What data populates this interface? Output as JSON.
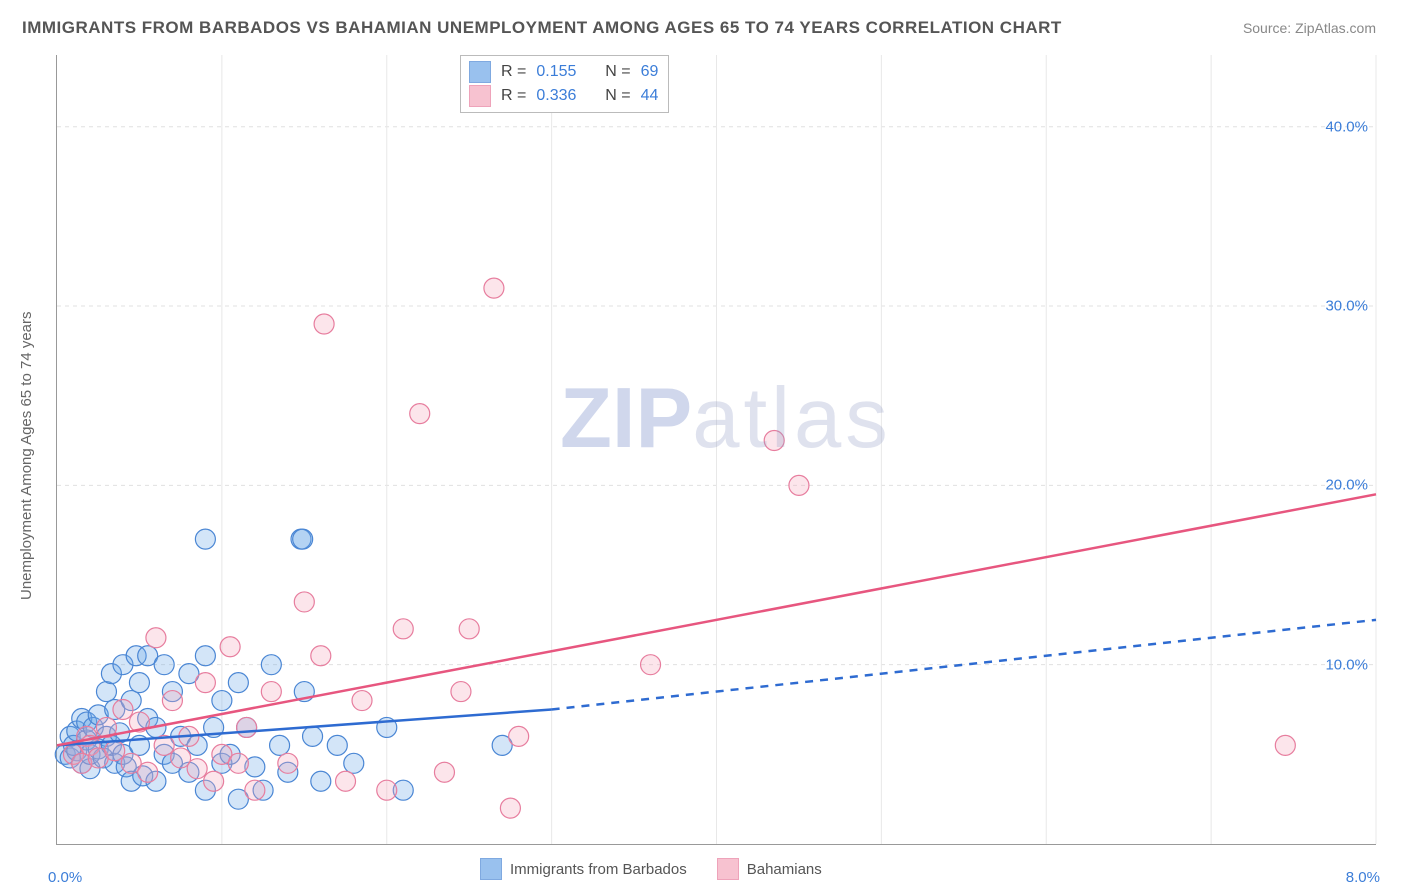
{
  "title": "IMMIGRANTS FROM BARBADOS VS BAHAMIAN UNEMPLOYMENT AMONG AGES 65 TO 74 YEARS CORRELATION CHART",
  "source": "Source: ZipAtlas.com",
  "watermark_a": "ZIP",
  "watermark_b": "atlas",
  "y_axis_label": "Unemployment Among Ages 65 to 74 years",
  "chart": {
    "type": "scatter",
    "xlim": [
      0,
      8
    ],
    "ylim": [
      0,
      44
    ],
    "background_color": "#ffffff",
    "grid_color_h": "#e0e0e0",
    "grid_color_v": "#e8e8e8",
    "y_ticks": [
      10,
      20,
      30,
      40
    ],
    "y_tick_labels": [
      "10.0%",
      "20.0%",
      "30.0%",
      "40.0%"
    ],
    "x_ticks": [
      1,
      2,
      3,
      4,
      5,
      6,
      7,
      8
    ],
    "x_origin_label": "0.0%",
    "x_end_label": "8.0%",
    "marker_radius": 10,
    "marker_stroke_width": 1.2,
    "marker_fill_opacity": 0.3,
    "series": [
      {
        "name": "Immigrants from Barbados",
        "color": "#6ea8e8",
        "stroke": "#4a86d4",
        "R": "0.155",
        "N": "69",
        "trend": {
          "x0": 0,
          "y0": 5.5,
          "x1_solid": 3.0,
          "y1_solid": 7.5,
          "x2_dash": 8.0,
          "y2_dash": 12.5,
          "solid_color": "#2e6bd1",
          "width": 2.5,
          "dash": "8 7"
        },
        "points": [
          [
            0.05,
            5.0
          ],
          [
            0.08,
            6.0
          ],
          [
            0.08,
            4.8
          ],
          [
            0.1,
            5.5
          ],
          [
            0.12,
            5.2
          ],
          [
            0.12,
            6.3
          ],
          [
            0.15,
            4.5
          ],
          [
            0.15,
            7.0
          ],
          [
            0.18,
            5.8
          ],
          [
            0.18,
            6.8
          ],
          [
            0.2,
            4.2
          ],
          [
            0.2,
            5.0
          ],
          [
            0.22,
            6.5
          ],
          [
            0.25,
            5.3
          ],
          [
            0.25,
            7.2
          ],
          [
            0.28,
            4.8
          ],
          [
            0.3,
            6.0
          ],
          [
            0.3,
            8.5
          ],
          [
            0.33,
            5.5
          ],
          [
            0.33,
            9.5
          ],
          [
            0.35,
            4.5
          ],
          [
            0.35,
            7.5
          ],
          [
            0.38,
            6.2
          ],
          [
            0.4,
            5.0
          ],
          [
            0.4,
            10.0
          ],
          [
            0.42,
            4.3
          ],
          [
            0.45,
            8.0
          ],
          [
            0.45,
            3.5
          ],
          [
            0.48,
            10.5
          ],
          [
            0.5,
            5.5
          ],
          [
            0.5,
            9.0
          ],
          [
            0.52,
            3.8
          ],
          [
            0.55,
            7.0
          ],
          [
            0.55,
            10.5
          ],
          [
            0.6,
            6.5
          ],
          [
            0.6,
            3.5
          ],
          [
            0.65,
            5.0
          ],
          [
            0.65,
            10.0
          ],
          [
            0.7,
            4.5
          ],
          [
            0.7,
            8.5
          ],
          [
            0.75,
            6.0
          ],
          [
            0.8,
            4.0
          ],
          [
            0.8,
            9.5
          ],
          [
            0.85,
            5.5
          ],
          [
            0.9,
            3.0
          ],
          [
            0.9,
            10.5
          ],
          [
            0.9,
            17.0
          ],
          [
            0.95,
            6.5
          ],
          [
            1.0,
            4.5
          ],
          [
            1.0,
            8.0
          ],
          [
            1.05,
            5.0
          ],
          [
            1.1,
            2.5
          ],
          [
            1.1,
            9.0
          ],
          [
            1.15,
            6.5
          ],
          [
            1.2,
            4.3
          ],
          [
            1.25,
            3.0
          ],
          [
            1.3,
            10.0
          ],
          [
            1.35,
            5.5
          ],
          [
            1.4,
            4.0
          ],
          [
            1.48,
            17.0
          ],
          [
            1.49,
            17.0
          ],
          [
            1.5,
            8.5
          ],
          [
            1.55,
            6.0
          ],
          [
            1.6,
            3.5
          ],
          [
            1.7,
            5.5
          ],
          [
            1.8,
            4.5
          ],
          [
            2.0,
            6.5
          ],
          [
            2.1,
            3.0
          ],
          [
            2.7,
            5.5
          ]
        ]
      },
      {
        "name": "Bahamians",
        "color": "#f4a9bd",
        "stroke": "#e77d9e",
        "R": "0.336",
        "N": "44",
        "trend": {
          "x0": 0,
          "y0": 5.5,
          "x1_solid": 8.0,
          "y1_solid": 19.5,
          "x2_dash": 8.0,
          "y2_dash": 19.5,
          "solid_color": "#e7567f",
          "width": 2.5,
          "dash": ""
        },
        "points": [
          [
            0.1,
            5.0
          ],
          [
            0.15,
            4.5
          ],
          [
            0.18,
            6.0
          ],
          [
            0.2,
            5.5
          ],
          [
            0.25,
            4.8
          ],
          [
            0.3,
            6.5
          ],
          [
            0.35,
            5.2
          ],
          [
            0.4,
            7.5
          ],
          [
            0.45,
            4.5
          ],
          [
            0.5,
            6.8
          ],
          [
            0.55,
            4.0
          ],
          [
            0.6,
            11.5
          ],
          [
            0.65,
            5.5
          ],
          [
            0.7,
            8.0
          ],
          [
            0.75,
            4.8
          ],
          [
            0.8,
            6.0
          ],
          [
            0.85,
            4.2
          ],
          [
            0.9,
            9.0
          ],
          [
            0.95,
            3.5
          ],
          [
            1.0,
            5.0
          ],
          [
            1.05,
            11.0
          ],
          [
            1.1,
            4.5
          ],
          [
            1.15,
            6.5
          ],
          [
            1.2,
            3.0
          ],
          [
            1.3,
            8.5
          ],
          [
            1.4,
            4.5
          ],
          [
            1.5,
            13.5
          ],
          [
            1.6,
            10.5
          ],
          [
            1.62,
            29.0
          ],
          [
            1.75,
            3.5
          ],
          [
            1.85,
            8.0
          ],
          [
            2.0,
            3.0
          ],
          [
            2.1,
            12.0
          ],
          [
            2.2,
            24.0
          ],
          [
            2.35,
            4.0
          ],
          [
            2.45,
            8.5
          ],
          [
            2.5,
            12.0
          ],
          [
            2.65,
            31.0
          ],
          [
            2.75,
            2.0
          ],
          [
            2.8,
            6.0
          ],
          [
            3.6,
            10.0
          ],
          [
            4.35,
            22.5
          ],
          [
            4.5,
            20.0
          ],
          [
            7.45,
            5.5
          ]
        ]
      }
    ],
    "legend": {
      "series1_label": "Immigrants from Barbados",
      "series2_label": "Bahamians"
    },
    "stats_labels": {
      "R": "R  =",
      "N": "N  ="
    }
  }
}
